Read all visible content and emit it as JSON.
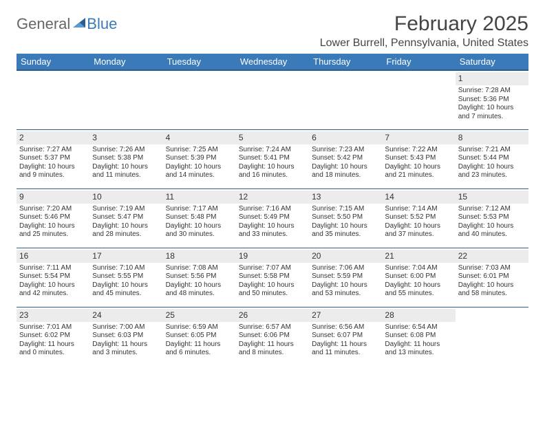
{
  "logo": {
    "word1": "General",
    "word2": "Blue",
    "sail_color": "#2d5d8f"
  },
  "title": "February 2025",
  "location": "Lower Burrell, Pennsylvania, United States",
  "header_bg": "#3a7ab8",
  "header_border": "#2d5d8f",
  "daynum_bg": "#ececec",
  "columns": [
    "Sunday",
    "Monday",
    "Tuesday",
    "Wednesday",
    "Thursday",
    "Friday",
    "Saturday"
  ],
  "weeks": [
    [
      null,
      null,
      null,
      null,
      null,
      null,
      {
        "n": "1",
        "sr": "Sunrise: 7:28 AM",
        "ss": "Sunset: 5:36 PM",
        "d1": "Daylight: 10 hours",
        "d2": "and 7 minutes."
      }
    ],
    [
      {
        "n": "2",
        "sr": "Sunrise: 7:27 AM",
        "ss": "Sunset: 5:37 PM",
        "d1": "Daylight: 10 hours",
        "d2": "and 9 minutes."
      },
      {
        "n": "3",
        "sr": "Sunrise: 7:26 AM",
        "ss": "Sunset: 5:38 PM",
        "d1": "Daylight: 10 hours",
        "d2": "and 11 minutes."
      },
      {
        "n": "4",
        "sr": "Sunrise: 7:25 AM",
        "ss": "Sunset: 5:39 PM",
        "d1": "Daylight: 10 hours",
        "d2": "and 14 minutes."
      },
      {
        "n": "5",
        "sr": "Sunrise: 7:24 AM",
        "ss": "Sunset: 5:41 PM",
        "d1": "Daylight: 10 hours",
        "d2": "and 16 minutes."
      },
      {
        "n": "6",
        "sr": "Sunrise: 7:23 AM",
        "ss": "Sunset: 5:42 PM",
        "d1": "Daylight: 10 hours",
        "d2": "and 18 minutes."
      },
      {
        "n": "7",
        "sr": "Sunrise: 7:22 AM",
        "ss": "Sunset: 5:43 PM",
        "d1": "Daylight: 10 hours",
        "d2": "and 21 minutes."
      },
      {
        "n": "8",
        "sr": "Sunrise: 7:21 AM",
        "ss": "Sunset: 5:44 PM",
        "d1": "Daylight: 10 hours",
        "d2": "and 23 minutes."
      }
    ],
    [
      {
        "n": "9",
        "sr": "Sunrise: 7:20 AM",
        "ss": "Sunset: 5:46 PM",
        "d1": "Daylight: 10 hours",
        "d2": "and 25 minutes."
      },
      {
        "n": "10",
        "sr": "Sunrise: 7:19 AM",
        "ss": "Sunset: 5:47 PM",
        "d1": "Daylight: 10 hours",
        "d2": "and 28 minutes."
      },
      {
        "n": "11",
        "sr": "Sunrise: 7:17 AM",
        "ss": "Sunset: 5:48 PM",
        "d1": "Daylight: 10 hours",
        "d2": "and 30 minutes."
      },
      {
        "n": "12",
        "sr": "Sunrise: 7:16 AM",
        "ss": "Sunset: 5:49 PM",
        "d1": "Daylight: 10 hours",
        "d2": "and 33 minutes."
      },
      {
        "n": "13",
        "sr": "Sunrise: 7:15 AM",
        "ss": "Sunset: 5:50 PM",
        "d1": "Daylight: 10 hours",
        "d2": "and 35 minutes."
      },
      {
        "n": "14",
        "sr": "Sunrise: 7:14 AM",
        "ss": "Sunset: 5:52 PM",
        "d1": "Daylight: 10 hours",
        "d2": "and 37 minutes."
      },
      {
        "n": "15",
        "sr": "Sunrise: 7:12 AM",
        "ss": "Sunset: 5:53 PM",
        "d1": "Daylight: 10 hours",
        "d2": "and 40 minutes."
      }
    ],
    [
      {
        "n": "16",
        "sr": "Sunrise: 7:11 AM",
        "ss": "Sunset: 5:54 PM",
        "d1": "Daylight: 10 hours",
        "d2": "and 42 minutes."
      },
      {
        "n": "17",
        "sr": "Sunrise: 7:10 AM",
        "ss": "Sunset: 5:55 PM",
        "d1": "Daylight: 10 hours",
        "d2": "and 45 minutes."
      },
      {
        "n": "18",
        "sr": "Sunrise: 7:08 AM",
        "ss": "Sunset: 5:56 PM",
        "d1": "Daylight: 10 hours",
        "d2": "and 48 minutes."
      },
      {
        "n": "19",
        "sr": "Sunrise: 7:07 AM",
        "ss": "Sunset: 5:58 PM",
        "d1": "Daylight: 10 hours",
        "d2": "and 50 minutes."
      },
      {
        "n": "20",
        "sr": "Sunrise: 7:06 AM",
        "ss": "Sunset: 5:59 PM",
        "d1": "Daylight: 10 hours",
        "d2": "and 53 minutes."
      },
      {
        "n": "21",
        "sr": "Sunrise: 7:04 AM",
        "ss": "Sunset: 6:00 PM",
        "d1": "Daylight: 10 hours",
        "d2": "and 55 minutes."
      },
      {
        "n": "22",
        "sr": "Sunrise: 7:03 AM",
        "ss": "Sunset: 6:01 PM",
        "d1": "Daylight: 10 hours",
        "d2": "and 58 minutes."
      }
    ],
    [
      {
        "n": "23",
        "sr": "Sunrise: 7:01 AM",
        "ss": "Sunset: 6:02 PM",
        "d1": "Daylight: 11 hours",
        "d2": "and 0 minutes."
      },
      {
        "n": "24",
        "sr": "Sunrise: 7:00 AM",
        "ss": "Sunset: 6:03 PM",
        "d1": "Daylight: 11 hours",
        "d2": "and 3 minutes."
      },
      {
        "n": "25",
        "sr": "Sunrise: 6:59 AM",
        "ss": "Sunset: 6:05 PM",
        "d1": "Daylight: 11 hours",
        "d2": "and 6 minutes."
      },
      {
        "n": "26",
        "sr": "Sunrise: 6:57 AM",
        "ss": "Sunset: 6:06 PM",
        "d1": "Daylight: 11 hours",
        "d2": "and 8 minutes."
      },
      {
        "n": "27",
        "sr": "Sunrise: 6:56 AM",
        "ss": "Sunset: 6:07 PM",
        "d1": "Daylight: 11 hours",
        "d2": "and 11 minutes."
      },
      {
        "n": "28",
        "sr": "Sunrise: 6:54 AM",
        "ss": "Sunset: 6:08 PM",
        "d1": "Daylight: 11 hours",
        "d2": "and 13 minutes."
      },
      null
    ]
  ]
}
